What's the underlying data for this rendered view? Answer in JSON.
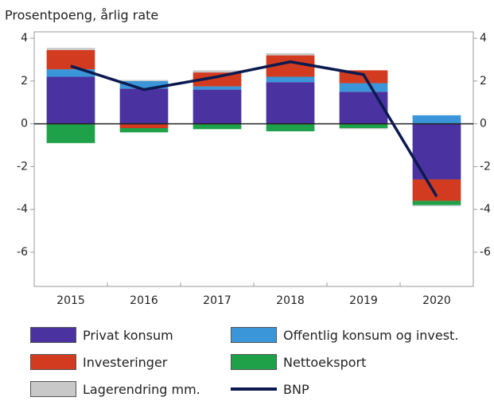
{
  "chart_data": {
    "type": "bar",
    "stacked": true,
    "title": "Prosentpoeng, årlig rate",
    "categories": [
      "2015",
      "2016",
      "2017",
      "2018",
      "2019",
      "2020"
    ],
    "series": [
      {
        "name": "Privat konsum",
        "color": "#4a33a0",
        "values": [
          2.2,
          1.65,
          1.6,
          1.95,
          1.5,
          -2.6
        ]
      },
      {
        "name": "Offentlig konsum og invest.",
        "color": "#3a96d8",
        "values": [
          0.35,
          0.35,
          0.15,
          0.25,
          0.4,
          0.4
        ]
      },
      {
        "name": "Investeringer",
        "color": "#d23b1f",
        "values": [
          0.9,
          -0.2,
          0.65,
          1.0,
          0.6,
          -1.0
        ]
      },
      {
        "name": "Nettoeksport",
        "color": "#1fa14a",
        "values": [
          -0.9,
          -0.2,
          -0.25,
          -0.35,
          -0.2,
          -0.2
        ]
      },
      {
        "name": "Lagerendring mm.",
        "color": "#c8c8c8",
        "values": [
          0.1,
          0.05,
          0.1,
          0.1,
          -0.05,
          -0.05
        ]
      },
      {
        "name": "BNP",
        "type": "line",
        "color": "#0c1a4f",
        "values": [
          2.7,
          1.6,
          2.2,
          2.9,
          2.3,
          -3.4
        ]
      }
    ],
    "ylim": [
      -7.6,
      4.3
    ],
    "yticks": [
      -6,
      -4,
      -2,
      0,
      2,
      4
    ],
    "y2lim": [
      -7.6,
      4.3
    ],
    "y2ticks": [
      -6,
      -4,
      -2,
      0,
      2,
      4
    ]
  }
}
